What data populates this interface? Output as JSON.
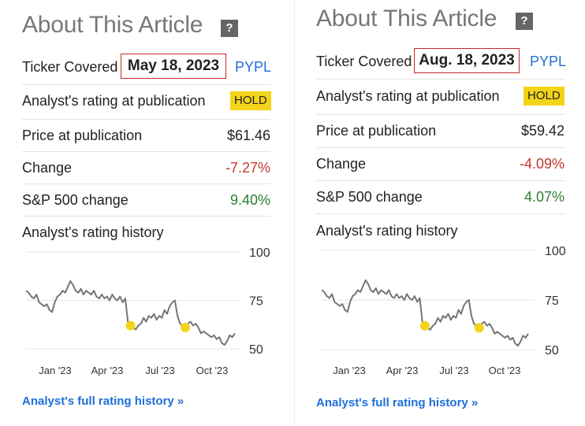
{
  "panels": [
    {
      "title": "About This Article",
      "help_label": "?",
      "ticker_label": "Ticker Covered",
      "date": "May 18, 2023",
      "ticker": "PYPL",
      "rating_label": "Analyst's rating at publication",
      "rating": "HOLD",
      "price_label": "Price at publication",
      "price": "$61.46",
      "change_label": "Change",
      "change": "-7.27%",
      "sp_label": "S&P 500 change",
      "sp_change": "9.40%",
      "history_label": "Analyst's rating history",
      "full_history_link": "Analyst's full rating history »",
      "chart_data": {
        "type": "line",
        "y_ticks": [
          "100",
          "75",
          "50"
        ],
        "ylim": [
          50,
          100
        ],
        "x_ticks": [
          "Jan '23",
          "Apr '23",
          "Jul '23",
          "Oct '23"
        ],
        "series": [
          {
            "values": [
              80,
              79,
              77,
              76,
              78,
              74,
              73,
              72,
              73,
              70,
              69,
              74,
              77,
              78,
              80,
              79,
              82,
              85,
              83,
              80,
              79,
              81,
              78,
              80,
              79,
              78,
              80,
              77,
              76,
              78,
              76,
              77,
              75,
              78,
              76,
              75,
              77,
              74,
              76,
              64,
              62,
              61,
              60,
              62,
              63,
              66,
              64,
              67,
              66,
              68,
              65,
              67,
              66,
              70,
              68,
              72,
              74,
              75,
              67,
              63,
              62,
              61,
              63,
              64,
              62,
              63,
              61,
              58,
              59,
              58,
              57,
              56,
              57,
              55,
              56,
              53,
              52,
              54,
              57,
              56,
              58
            ]
          }
        ],
        "markers": [
          {
            "index": 40,
            "value": 62
          },
          {
            "index": 61,
            "value": 61
          }
        ],
        "marker_color": "#f2d41a",
        "line_color": "#757575"
      }
    },
    {
      "title": "About This Article",
      "help_label": "?",
      "ticker_label": "Ticker Covered",
      "date": "Aug. 18, 2023",
      "ticker": "PYPL",
      "rating_label": "Analyst's rating at publication",
      "rating": "HOLD",
      "price_label": "Price at publication",
      "price": "$59.42",
      "change_label": "Change",
      "change": "-4.09%",
      "sp_label": "S&P 500 change",
      "sp_change": "4.07%",
      "history_label": "Analyst's rating history",
      "full_history_link": "Analyst's full rating history »",
      "chart_data": {
        "type": "line",
        "y_ticks": [
          "100",
          "75",
          "50"
        ],
        "ylim": [
          50,
          100
        ],
        "x_ticks": [
          "Jan '23",
          "Apr '23",
          "Jul '23",
          "Oct '23"
        ],
        "series": [
          {
            "values": [
              80,
              79,
              77,
              76,
              78,
              74,
              73,
              72,
              73,
              70,
              69,
              74,
              77,
              78,
              80,
              79,
              82,
              85,
              83,
              80,
              79,
              81,
              78,
              80,
              79,
              78,
              80,
              77,
              76,
              78,
              76,
              77,
              75,
              78,
              76,
              75,
              77,
              74,
              76,
              64,
              62,
              61,
              60,
              62,
              63,
              66,
              64,
              67,
              66,
              68,
              65,
              67,
              66,
              70,
              68,
              72,
              74,
              75,
              67,
              63,
              62,
              61,
              63,
              64,
              62,
              63,
              61,
              58,
              59,
              58,
              57,
              56,
              57,
              55,
              56,
              53,
              52,
              54,
              57,
              56,
              58
            ]
          }
        ],
        "markers": [
          {
            "index": 40,
            "value": 62
          },
          {
            "index": 61,
            "value": 61
          }
        ],
        "marker_color": "#f2d41a",
        "line_color": "#757575"
      }
    }
  ]
}
